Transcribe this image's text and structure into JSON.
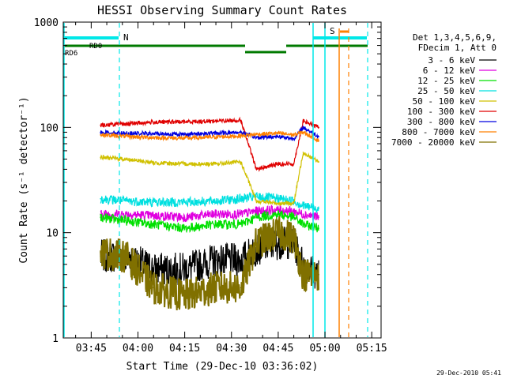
{
  "chart_data": {
    "type": "line",
    "title": "HESSI Observing Summary Count Rates",
    "xlabel": "Start Time (29-Dec-10 03:36:02)",
    "ylabel": "Count Rate (s⁻¹ detector⁻¹)",
    "yscale": "log",
    "ylim": [
      1,
      1000
    ],
    "xlim": [
      "03:36:02",
      "05:18:00"
    ],
    "x_ticks": [
      "03:45",
      "04:00",
      "04:15",
      "04:30",
      "04:45",
      "05:00",
      "05:15"
    ],
    "y_ticks": [
      "1",
      "10",
      "100",
      "1000"
    ],
    "grid": false,
    "legend_position": "right",
    "legend_header": [
      "Det 1,3,4,5,6,9,",
      "FDecim 1, Att 0"
    ],
    "timestamp": "29-Dec-2010 05:41",
    "x": [
      "03:48",
      "03:56",
      "04:05",
      "04:15",
      "04:25",
      "04:33",
      "04:38",
      "04:45",
      "04:50",
      "04:53",
      "04:58"
    ],
    "series": [
      {
        "name": "3 - 6 keV",
        "color": "#000000",
        "values": [
          6,
          6,
          4.5,
          4.5,
          5.5,
          5.5,
          7,
          8,
          8,
          5,
          4
        ]
      },
      {
        "name": "6 - 12 keV",
        "color": "#e000e0",
        "values": [
          15,
          15,
          14.5,
          14,
          15,
          15,
          16,
          16.5,
          16,
          15,
          14
        ]
      },
      {
        "name": "12 - 25 keV",
        "color": "#00e000",
        "values": [
          14,
          13,
          12,
          11,
          12,
          12,
          14,
          15,
          14,
          12,
          11
        ]
      },
      {
        "name": "25 - 50 keV",
        "color": "#00e0e0",
        "values": [
          21,
          20,
          19.5,
          19.5,
          20,
          21,
          22,
          21,
          20,
          18,
          17
        ]
      },
      {
        "name": "50 - 100 keV",
        "color": "#d0c000",
        "values": [
          52,
          50,
          46,
          45,
          45,
          47,
          20,
          19,
          19,
          58,
          47
        ]
      },
      {
        "name": "100 - 300 keV",
        "color": "#e00000",
        "values": [
          105,
          108,
          112,
          113,
          115,
          117,
          40,
          45,
          45,
          115,
          100
        ]
      },
      {
        "name": "300 - 800 keV",
        "color": "#0000e0",
        "values": [
          90,
          88,
          87,
          86,
          88,
          90,
          80,
          82,
          78,
          100,
          82
        ]
      },
      {
        "name": "800 - 7000 keV",
        "color": "#ff8000",
        "values": [
          85,
          82,
          80,
          79,
          81,
          83,
          86,
          88,
          85,
          90,
          75
        ]
      },
      {
        "name": "7000 - 20000 keV",
        "color": "#807000",
        "values": [
          6.5,
          6,
          3,
          2.5,
          3,
          3,
          8,
          10,
          9,
          4,
          4
        ]
      }
    ],
    "flags": [
      {
        "label": "N",
        "color": "#00e8e8"
      },
      {
        "label": "S",
        "color": "#ff8000"
      },
      {
        "label": "RD0",
        "color": "#007a00"
      },
      {
        "label": "RD6",
        "color": "#007a00"
      }
    ]
  }
}
